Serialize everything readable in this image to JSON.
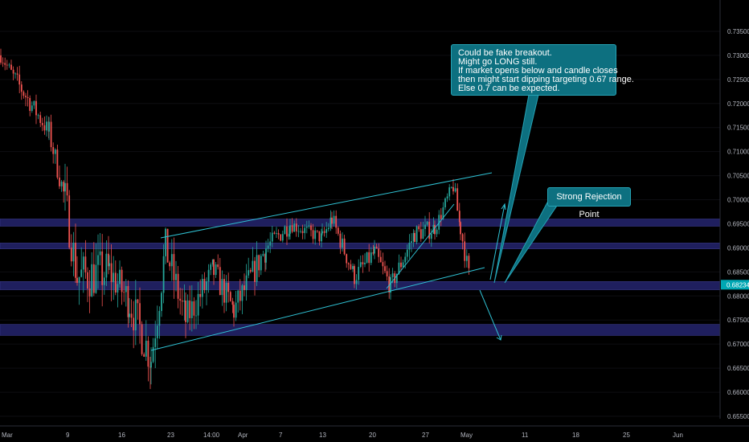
{
  "chart_data": {
    "type": "candlestick",
    "price_axis": {
      "ticks": [
        "0.73500",
        "0.73000",
        "0.72500",
        "0.72000",
        "0.71500",
        "0.71000",
        "0.70500",
        "0.70000",
        "0.69500",
        "0.69000",
        "0.68500",
        "0.68000",
        "0.67500",
        "0.67000",
        "0.66500",
        "0.66000",
        "0.65500"
      ],
      "range": [
        0.6545,
        0.7375
      ]
    },
    "time_axis": {
      "ticks": [
        "Mar",
        "9",
        "16",
        "23",
        "14:00",
        "Apr",
        "7",
        "13",
        "20",
        "27",
        "May",
        "11",
        "18",
        "25",
        "Jun"
      ]
    },
    "last_price": "0.68234",
    "series_segments": [
      {
        "from_x": 0,
        "to_x": 18,
        "start": 0.73,
        "end": 0.725,
        "vol": 0.003
      },
      {
        "from_x": 18,
        "to_x": 60,
        "start": 0.725,
        "end": 0.714,
        "vol": 0.004
      },
      {
        "from_x": 60,
        "to_x": 80,
        "start": 0.714,
        "end": 0.7,
        "vol": 0.005
      },
      {
        "from_x": 80,
        "to_x": 95,
        "start": 0.7,
        "end": 0.684,
        "vol": 0.009
      },
      {
        "from_x": 95,
        "to_x": 135,
        "start": 0.684,
        "end": 0.685,
        "vol": 0.01
      },
      {
        "from_x": 135,
        "to_x": 160,
        "start": 0.685,
        "end": 0.679,
        "vol": 0.008
      },
      {
        "from_x": 160,
        "to_x": 187,
        "start": 0.679,
        "end": 0.667,
        "vol": 0.009
      },
      {
        "from_x": 187,
        "to_x": 205,
        "start": 0.667,
        "end": 0.69,
        "vol": 0.009
      },
      {
        "from_x": 205,
        "to_x": 230,
        "start": 0.69,
        "end": 0.675,
        "vol": 0.008
      },
      {
        "from_x": 230,
        "to_x": 265,
        "start": 0.675,
        "end": 0.685,
        "vol": 0.007
      },
      {
        "from_x": 265,
        "to_x": 290,
        "start": 0.685,
        "end": 0.677,
        "vol": 0.006
      },
      {
        "from_x": 290,
        "to_x": 330,
        "start": 0.677,
        "end": 0.69,
        "vol": 0.006
      },
      {
        "from_x": 330,
        "to_x": 360,
        "start": 0.69,
        "end": 0.695,
        "vol": 0.004
      },
      {
        "from_x": 360,
        "to_x": 400,
        "start": 0.695,
        "end": 0.692,
        "vol": 0.003
      },
      {
        "from_x": 400,
        "to_x": 412,
        "start": 0.692,
        "end": 0.696,
        "vol": 0.004
      },
      {
        "from_x": 412,
        "to_x": 440,
        "start": 0.696,
        "end": 0.684,
        "vol": 0.004
      },
      {
        "from_x": 440,
        "to_x": 465,
        "start": 0.684,
        "end": 0.689,
        "vol": 0.004
      },
      {
        "from_x": 465,
        "to_x": 485,
        "start": 0.689,
        "end": 0.682,
        "vol": 0.004
      },
      {
        "from_x": 485,
        "to_x": 515,
        "start": 0.682,
        "end": 0.693,
        "vol": 0.004
      },
      {
        "from_x": 515,
        "to_x": 540,
        "start": 0.693,
        "end": 0.694,
        "vol": 0.004
      },
      {
        "from_x": 540,
        "to_x": 563,
        "start": 0.694,
        "end": 0.703,
        "vol": 0.003
      },
      {
        "from_x": 563,
        "to_x": 572,
        "start": 0.703,
        "end": 0.694,
        "vol": 0.004
      },
      {
        "from_x": 572,
        "to_x": 585,
        "start": 0.694,
        "end": 0.682,
        "vol": 0.004
      }
    ],
    "zones": [
      {
        "from": 0.6945,
        "to": 0.696
      },
      {
        "from": 0.6898,
        "to": 0.691
      },
      {
        "from": 0.6813,
        "to": 0.683
      },
      {
        "from": 0.6718,
        "to": 0.6741
      }
    ],
    "colors": {
      "up": "#26a69a",
      "down": "#ef5350",
      "line": "#2fc1d3",
      "zone": "#1f1f5e",
      "zone_edge": "#3a3a8a",
      "axis_text": "#b2b5be",
      "callout_bg": "#0d7080",
      "price_tag": "#00a7b3"
    }
  },
  "annotations": {
    "note_lines": [
      "Could be fake breakout.",
      "Might go LONG still.",
      "If market opens below and candle closes",
      "then might start dipping targeting 0.67 range.",
      "Else 0.7 can be expected."
    ],
    "rejection_label": "Strong Rejection Point"
  }
}
